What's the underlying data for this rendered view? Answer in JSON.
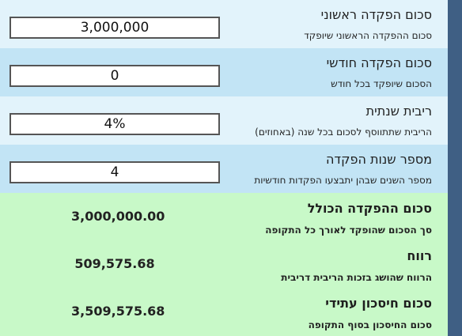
{
  "inputs": [
    {
      "label": "סכום הפקדה ראשוני",
      "description": "סכום ההפקדה הראשוני שיופקד",
      "value": "3,000,000"
    },
    {
      "label": "סכום הפקדה חודשי",
      "description": "הסכום שיופקד בכל חודש",
      "value": "0"
    },
    {
      "label": "ריבית שנתית",
      "description": "הריבית שתתווסף לסכום בכל שנה (באחוזים)",
      "value": "4%"
    },
    {
      "label": "מספר שנות הפקדה",
      "description": "מספר השנים שבהן יתבצעו הפקדות חודשיות",
      "value": "4"
    }
  ],
  "results": [
    {
      "label": "סכום ההפקדה הכולל",
      "description": "סך הסכום שהופקד לאורך כל התקופה",
      "value": "3,000,000.00"
    },
    {
      "label": "רווח",
      "description": "הרווח שהושג בזכות הריבית דריבית",
      "value": "509,575.68"
    },
    {
      "label": "סכום חיסכון עתידי",
      "description": "סכום החיסכון בסוף התקופה",
      "value": "3,509,575.68"
    }
  ],
  "colors": {
    "row_light": "#e2f3fb",
    "row_dark": "#c2e4f5",
    "results_bg": "#c8f9c8",
    "scrollbar": "#3f5f84"
  }
}
